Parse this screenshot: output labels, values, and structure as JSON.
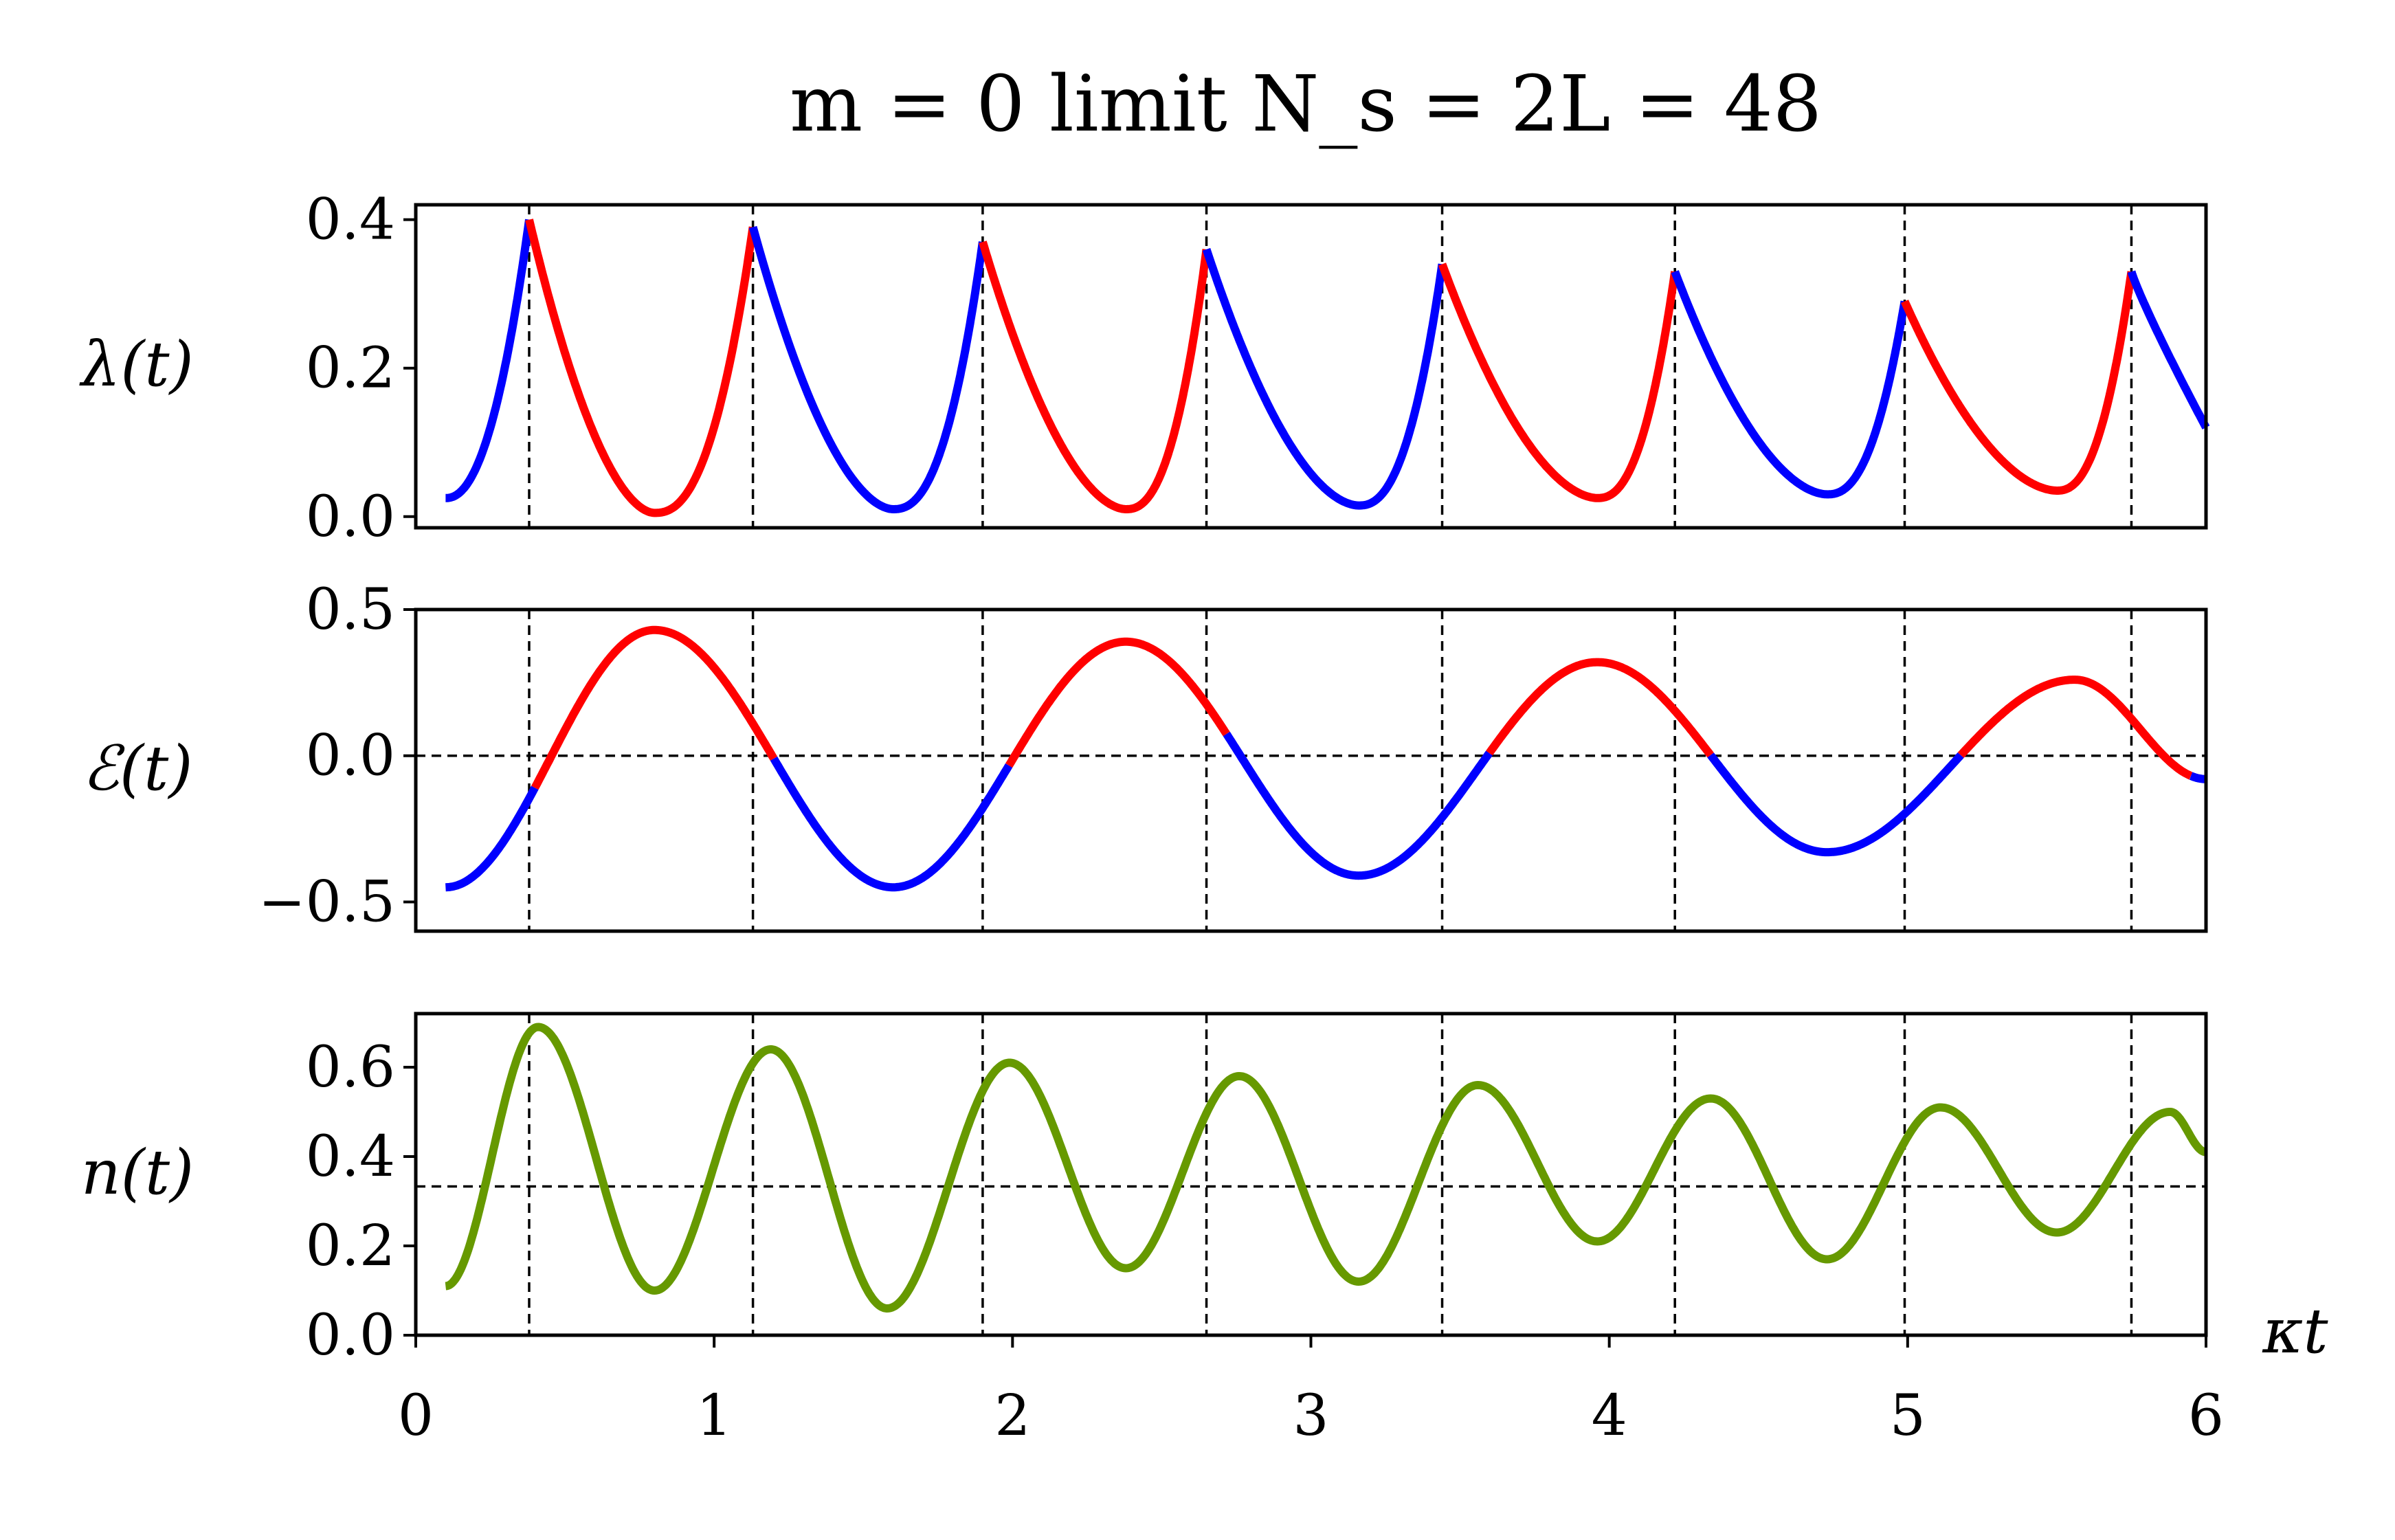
{
  "chart_data": [
    {
      "type": "line",
      "title": "m = 0 limit N_s = 2L = 48",
      "ylabel": "λ(t)",
      "xlim": [
        0,
        6
      ],
      "ylim": [
        -0.015,
        0.42
      ],
      "yticks": [
        "0.0",
        "0.2",
        "0.4"
      ],
      "ytick_values": [
        0.0,
        0.2,
        0.4
      ],
      "series_colors": [
        "#0000ff",
        "#ff0000"
      ],
      "peaks_x": [
        0.1,
        0.38,
        1.13,
        1.9,
        2.65,
        3.44,
        4.22,
        4.99,
        5.75,
        6.0
      ],
      "peaks_y": [
        0.025,
        0.4,
        0.39,
        0.37,
        0.36,
        0.34,
        0.33,
        0.29,
        0.33,
        0.12
      ],
      "troughs_x": [
        0.8,
        1.6,
        2.38,
        3.16,
        3.96,
        4.73,
        5.5
      ],
      "troughs_y": [
        0.005,
        0.01,
        0.01,
        0.015,
        0.025,
        0.03,
        0.035
      ],
      "segment_colors": [
        "blue",
        "red",
        "blue",
        "red",
        "blue",
        "red",
        "blue",
        "red",
        "blue"
      ],
      "vlines_x": [
        0.38,
        1.13,
        1.9,
        2.65,
        3.44,
        4.22,
        4.99,
        5.75
      ]
    },
    {
      "type": "line",
      "ylabel": "ℰ(t)",
      "xlim": [
        0,
        6
      ],
      "ylim": [
        -0.6,
        0.5
      ],
      "yticks": [
        "0.5",
        "0.0",
        "−0.5"
      ],
      "ytick_values": [
        0.5,
        0.0,
        -0.5
      ],
      "series_colors": [
        "#0000ff",
        "#ff0000"
      ],
      "x_start": 0.1,
      "x_end": 6.0,
      "amplitude_points_x": [
        0.1,
        0.8,
        1.6,
        2.38,
        3.16,
        3.96,
        4.73,
        5.56,
        6.0
      ],
      "amplitude_points_y": [
        -0.45,
        0.43,
        -0.45,
        0.39,
        -0.41,
        0.32,
        -0.33,
        0.26,
        -0.08
      ],
      "hline_y": 0.0,
      "vlines_x": [
        0.38,
        1.13,
        1.9,
        2.65,
        3.44,
        4.22,
        4.99,
        5.75
      ]
    },
    {
      "type": "line",
      "ylabel": "n(t)",
      "xlabel": "κt",
      "xlim": [
        0,
        6
      ],
      "ylim": [
        0.0,
        0.72
      ],
      "yticks": [
        "0.0",
        "0.2",
        "0.4",
        "0.6"
      ],
      "ytick_values": [
        0.0,
        0.2,
        0.4,
        0.6
      ],
      "xticks": [
        "0",
        "1",
        "2",
        "3",
        "4",
        "5",
        "6"
      ],
      "xtick_values": [
        0,
        1,
        2,
        3,
        4,
        5,
        6
      ],
      "series_color": "#669900",
      "extrema_x": [
        0.1,
        0.41,
        0.8,
        1.19,
        1.58,
        1.99,
        2.38,
        2.76,
        3.16,
        3.56,
        3.96,
        4.34,
        4.73,
        5.11,
        5.5,
        5.88,
        6.0
      ],
      "extrema_y": [
        0.11,
        0.69,
        0.1,
        0.64,
        0.06,
        0.61,
        0.15,
        0.58,
        0.12,
        0.56,
        0.21,
        0.53,
        0.17,
        0.51,
        0.23,
        0.5,
        0.41
      ],
      "hline_y": 0.333,
      "vlines_x": [
        0.38,
        1.13,
        1.9,
        2.65,
        3.44,
        4.22,
        4.99,
        5.75
      ]
    }
  ]
}
